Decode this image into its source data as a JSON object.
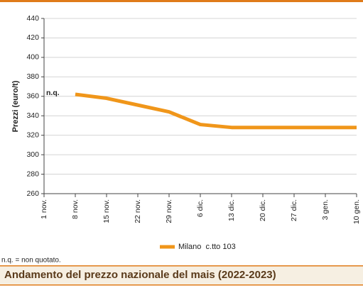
{
  "chart_data": {
    "type": "line",
    "title": "Andamento del prezzo nazionale del mais (2022-2023)",
    "y_label": "Prezzi (euro/t)",
    "footnote": "n.q. = non quotato.",
    "annotation": "n.q.",
    "categories": [
      "1 nov.",
      "8 nov.",
      "15 nov.",
      "22 nov.",
      "29 nov.",
      "6 dic.",
      "13 dic.",
      "20 dic.",
      "27 dic.",
      "3 gen.",
      "10 gen."
    ],
    "series": [
      {
        "name": "Milano  c.tto 103",
        "color": "#f0961a",
        "values": [
          null,
          362,
          358,
          351,
          344,
          331,
          328,
          328,
          328,
          328,
          328
        ]
      }
    ],
    "ylim": [
      260,
      440
    ],
    "yticks": [
      260,
      280,
      300,
      320,
      340,
      360,
      380,
      400,
      420,
      440
    ],
    "grid": true
  }
}
